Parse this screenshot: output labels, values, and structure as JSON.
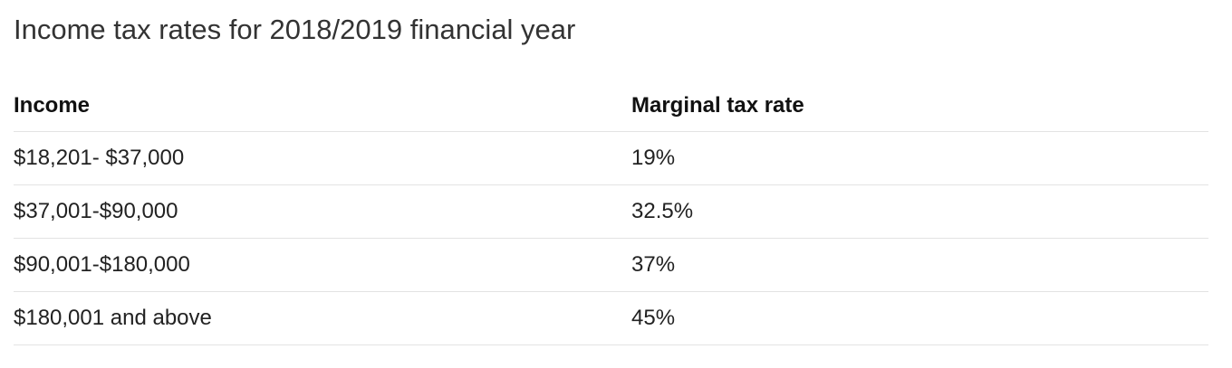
{
  "title": "Income tax rates for 2018/2019 financial year",
  "table": {
    "headers": [
      "Income",
      "Marginal tax rate"
    ],
    "rows": [
      [
        "$18,201- $37,000",
        "19%"
      ],
      [
        "$37,001-$90,000",
        "32.5%"
      ],
      [
        "$90,001-$180,000",
        "37%"
      ],
      [
        "$180,001 and above",
        "45%"
      ]
    ]
  }
}
